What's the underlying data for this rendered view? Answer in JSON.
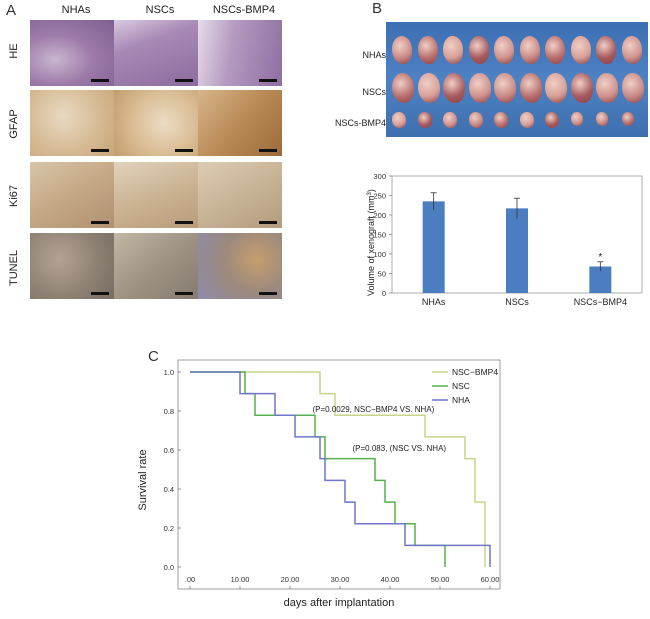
{
  "panelA": {
    "letter": "A",
    "columns": [
      "NHAs",
      "NSCs",
      "NSCs-BMP4"
    ],
    "rows": [
      "HE",
      "GFAP",
      "Ki67",
      "TUNEL"
    ]
  },
  "panelB": {
    "letter": "B",
    "photo_rows": [
      "NHAs",
      "NSCs",
      "NSCs-BMP4"
    ],
    "photo_counts": [
      10,
      10,
      10
    ]
  },
  "chart_data": [
    {
      "type": "bar",
      "categories": [
        "NHAs",
        "NSCs",
        "NSCs−BMP4"
      ],
      "values": [
        235,
        217,
        68
      ],
      "errors": [
        22,
        26,
        12
      ],
      "ylabel": "Volume of xenograft (mm³)",
      "ylabel_base": "Volume of xenograft (mm",
      "ylabel_sup": "3",
      "ylabel_tail": ")",
      "ylim": [
        0,
        300
      ],
      "yticks": [
        "0",
        "50",
        "100",
        "150",
        "200",
        "250",
        "300"
      ],
      "annotation": "*",
      "color": "#4a7ec0"
    },
    {
      "type": "line",
      "panel_letter": "C",
      "title": "",
      "xlabel": "days after implantation",
      "ylabel": "Survival rate",
      "xlim": [
        0,
        60
      ],
      "ylim": [
        0,
        1.0
      ],
      "xticks": [
        ".00",
        "10.00",
        "20.00",
        "30.00",
        "40.00",
        "50.00",
        "60.00"
      ],
      "yticks": [
        "0.0",
        "0.2",
        "0.4",
        "0.6",
        "0.8",
        "1.0"
      ],
      "series": [
        {
          "name": "NSC−BMP4",
          "color": "#c9d48a",
          "steps": [
            [
              0,
              1.0
            ],
            [
              26,
              1.0
            ],
            [
              26,
              0.889
            ],
            [
              29,
              0.889
            ],
            [
              29,
              0.778
            ],
            [
              36,
              0.778
            ],
            [
              36,
              0.778
            ],
            [
              47,
              0.778
            ],
            [
              47,
              0.667
            ],
            [
              55,
              0.667
            ],
            [
              55,
              0.556
            ],
            [
              57,
              0.556
            ],
            [
              57,
              0.333
            ],
            [
              59,
              0.333
            ],
            [
              59,
              0.0
            ]
          ]
        },
        {
          "name": "NSC",
          "color": "#55b04f",
          "steps": [
            [
              0,
              1.0
            ],
            [
              11,
              1.0
            ],
            [
              11,
              0.889
            ],
            [
              13,
              0.889
            ],
            [
              13,
              0.778
            ],
            [
              25,
              0.778
            ],
            [
              25,
              0.667
            ],
            [
              27,
              0.667
            ],
            [
              27,
              0.556
            ],
            [
              37,
              0.556
            ],
            [
              37,
              0.444
            ],
            [
              39,
              0.444
            ],
            [
              39,
              0.333
            ],
            [
              41,
              0.333
            ],
            [
              41,
              0.222
            ],
            [
              45,
              0.222
            ],
            [
              45,
              0.111
            ],
            [
              51,
              0.111
            ],
            [
              51,
              0.0
            ]
          ]
        },
        {
          "name": "NHA",
          "color": "#6f76c8",
          "steps": [
            [
              0,
              1.0
            ],
            [
              10,
              1.0
            ],
            [
              10,
              0.889
            ],
            [
              17,
              0.889
            ],
            [
              17,
              0.778
            ],
            [
              21,
              0.778
            ],
            [
              21,
              0.667
            ],
            [
              26,
              0.667
            ],
            [
              26,
              0.556
            ],
            [
              27,
              0.556
            ],
            [
              27,
              0.444
            ],
            [
              31,
              0.444
            ],
            [
              31,
              0.333
            ],
            [
              33,
              0.333
            ],
            [
              33,
              0.222
            ],
            [
              43,
              0.222
            ],
            [
              43,
              0.111
            ],
            [
              60,
              0.111
            ],
            [
              60,
              0.0
            ]
          ]
        }
      ],
      "annotations": [
        "(P=0.0029, NSC−BMP4 VS. NHA)",
        "(P=0.083, (NSC VS. NHA)"
      ]
    }
  ]
}
